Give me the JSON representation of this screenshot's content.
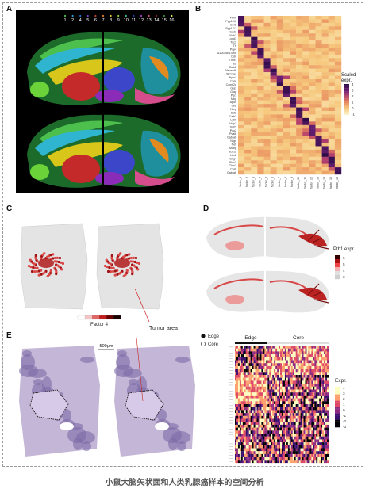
{
  "panels": {
    "a": {
      "label": "A",
      "cluster_numbers": [
        "1",
        "2",
        "4",
        "5",
        "6",
        "7",
        "8",
        "9",
        "10",
        "11",
        "12",
        "13",
        "14",
        "15",
        "16"
      ]
    },
    "b": {
      "label": "B",
      "legend_title_1": "Scaled",
      "legend_title_2": "expr.",
      "legend_ticks": [
        "4",
        "3",
        "2",
        "1",
        "0",
        "-1"
      ],
      "genes": [
        "Penk",
        "Ppp1r1b",
        "Gpr6",
        "Ppp1r17",
        "Gad1",
        "Nab2",
        "Lypd1",
        "Tac2",
        "Ttr",
        "Pcp4",
        "3110035E14Rik",
        "Ddn",
        "Tnnt1",
        "Sst",
        "Calb2",
        "Neurod6",
        "Slc17a7",
        "Nptx1",
        "Car4",
        "Camk2a",
        "Gja1",
        "Gfap",
        "Plp1",
        "Mbp",
        "Apod",
        "Glul",
        "Nrep",
        "Sst2",
        "Calb1",
        "Ly6h",
        "Hap1",
        "Sst2r",
        "Pcp2",
        "Pvalb",
        "Gabra6",
        "Nrgn",
        "Nefl",
        "Mobp",
        "Scn1a",
        "Lhx2",
        "Gng4",
        "Cbln1",
        "Cbln3",
        "Car8",
        "Gabra6"
      ],
      "factors": [
        "factor_1",
        "factor_2",
        "factor_3",
        "factor_4",
        "factor_5",
        "factor_6",
        "factor_7",
        "factor_8",
        "factor_9",
        "factor_10",
        "factor_11",
        "factor_12",
        "factor_13",
        "factor_14",
        "factor_15",
        "factor_16"
      ]
    },
    "c": {
      "label": "C",
      "colorbar_label": "Factor 4",
      "annotation": "Tumor area"
    },
    "d": {
      "label": "D",
      "legend_title": "Pth1 expr.",
      "legend_ticks": [
        "6",
        "5",
        "4",
        "3"
      ]
    },
    "e": {
      "label": "E",
      "scale_bar": "500μm",
      "legend_edge": "Edge",
      "legend_core": "Core",
      "group_edge": "Edge",
      "group_core": "Core",
      "legend_title": "Expr.",
      "legend_ticks": [
        "4",
        "3",
        "2",
        "1",
        "0",
        "-1",
        "-2",
        "-3"
      ]
    }
  },
  "caption": "小鼠大脑矢状面和人类乳腺癌样本的空间分析",
  "colors": {
    "cluster_palette": [
      "#4cbf4c",
      "#2aa0d8",
      "#1f6fd0",
      "#6a3fc6",
      "#c23a3a",
      "#e07b1c",
      "#f2cf1e",
      "#86d12f",
      "#36c2a3",
      "#2146b8",
      "#a33cc4",
      "#d84f8e",
      "#8b2020",
      "#3a8a3a",
      "#e8e84a",
      "#d02b2b"
    ],
    "heat_low": "#fbf1c7",
    "heat_high": "#2b0b47"
  }
}
